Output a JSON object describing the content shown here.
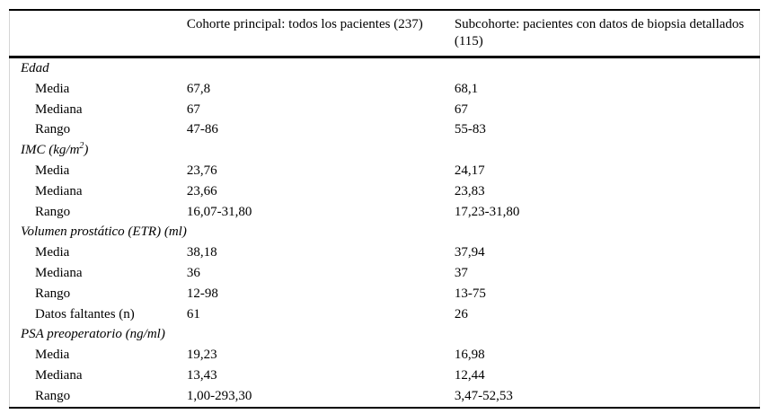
{
  "table": {
    "header": {
      "col_main": "Cohorte principal: todos los pacientes (237)",
      "col_sub": "Subcohorte: pacientes con datos de biopsia detallados (115)"
    },
    "sections": [
      {
        "title_pre": "Edad",
        "title_sup": "",
        "title_post": "",
        "rows": [
          {
            "label": "Media",
            "main": "67,8",
            "sub": "68,1"
          },
          {
            "label": "Mediana",
            "main": "67",
            "sub": "67"
          },
          {
            "label": "Rango",
            "main": "47-86",
            "sub": "55-83"
          }
        ]
      },
      {
        "title_pre": "IMC (kg/m",
        "title_sup": "2",
        "title_post": ")",
        "rows": [
          {
            "label": "Media",
            "main": "23,76",
            "sub": "24,17"
          },
          {
            "label": "Mediana",
            "main": "23,66",
            "sub": "23,83"
          },
          {
            "label": "Rango",
            "main": "16,07-31,80",
            "sub": "17,23-31,80"
          }
        ]
      },
      {
        "title_pre": "Volumen prostático (ETR) (ml)",
        "title_sup": "",
        "title_post": "",
        "rows": [
          {
            "label": "Media",
            "main": "38,18",
            "sub": "37,94"
          },
          {
            "label": "Mediana",
            "main": "36",
            "sub": "37"
          },
          {
            "label": "Rango",
            "main": "12-98",
            "sub": "13-75"
          },
          {
            "label": "Datos faltantes (n)",
            "main": "61",
            "sub": "26"
          }
        ]
      },
      {
        "title_pre": "PSA preoperatorio (ng/ml)",
        "title_sup": "",
        "title_post": "",
        "rows": [
          {
            "label": "Media",
            "main": "19,23",
            "sub": "16,98"
          },
          {
            "label": "Mediana",
            "main": "13,43",
            "sub": "12,44"
          },
          {
            "label": "Rango",
            "main": "1,00-293,30",
            "sub": "3,47-52,53"
          }
        ]
      }
    ]
  }
}
